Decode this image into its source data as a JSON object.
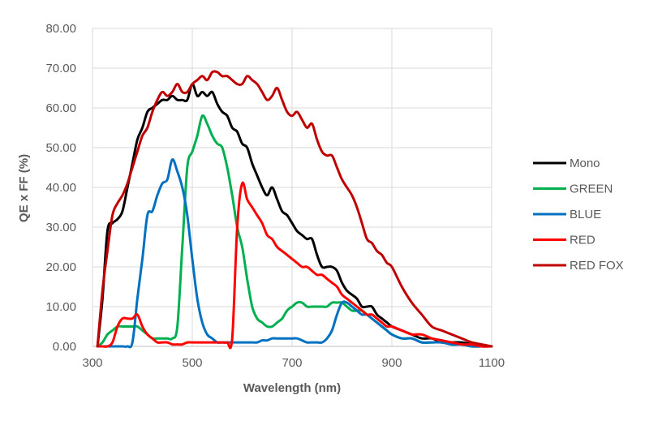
{
  "chart_data": {
    "type": "line",
    "xlabel": "Wavelength (nm)",
    "ylabel": "QE x FF (%)",
    "xlim": [
      300,
      1100
    ],
    "ylim": [
      0,
      80
    ],
    "xticks": [
      300,
      500,
      700,
      900,
      1100
    ],
    "xtick_labels": [
      "300",
      "500",
      "700",
      "900",
      "1100"
    ],
    "yticks": [
      0,
      10,
      20,
      30,
      40,
      50,
      60,
      70,
      80
    ],
    "ytick_labels": [
      "0.00",
      "10.00",
      "20.00",
      "30.00",
      "40.00",
      "50.00",
      "60.00",
      "70.00",
      "80.00"
    ],
    "grid": "vertical and horizontal major gridlines",
    "legend_position": "right",
    "series": [
      {
        "name": "Mono",
        "color": "#000000",
        "x": [
          310,
          320,
          330,
          340,
          350,
          360,
          370,
          380,
          390,
          400,
          410,
          420,
          430,
          440,
          450,
          460,
          470,
          480,
          490,
          500,
          510,
          520,
          530,
          540,
          550,
          560,
          570,
          580,
          590,
          600,
          610,
          620,
          630,
          640,
          650,
          660,
          670,
          680,
          690,
          700,
          710,
          720,
          730,
          740,
          750,
          760,
          770,
          780,
          790,
          800,
          810,
          820,
          830,
          840,
          850,
          860,
          870,
          880,
          890,
          900,
          920,
          940,
          960,
          980,
          1000,
          1020,
          1040,
          1060,
          1080,
          1100
        ],
        "y": [
          0,
          12,
          29,
          31,
          32,
          34,
          40,
          46,
          52,
          55,
          59,
          60,
          61,
          62,
          62,
          63,
          62,
          62,
          62,
          66,
          63,
          64,
          63,
          64,
          61,
          59,
          58,
          55,
          54,
          51,
          50,
          46,
          43,
          40,
          38,
          40,
          37,
          34,
          33,
          31,
          29,
          28,
          27,
          27,
          23,
          20,
          20,
          20,
          19,
          16,
          14,
          13,
          12,
          10,
          10,
          10,
          8,
          7,
          6,
          5,
          4,
          3,
          2,
          2,
          1,
          1,
          1,
          0.5,
          0,
          0
        ]
      },
      {
        "name": "GREEN",
        "color": "#00b050",
        "x": [
          310,
          320,
          330,
          340,
          350,
          360,
          370,
          380,
          390,
          400,
          410,
          420,
          430,
          440,
          450,
          460,
          470,
          480,
          490,
          500,
          510,
          520,
          530,
          540,
          550,
          560,
          570,
          580,
          590,
          600,
          610,
          620,
          630,
          640,
          650,
          660,
          670,
          680,
          690,
          700,
          710,
          720,
          730,
          740,
          750,
          760,
          770,
          780,
          790,
          800,
          810,
          820,
          830,
          840,
          850,
          860,
          870,
          880,
          890,
          900,
          920,
          940,
          960,
          980,
          1000,
          1020,
          1040,
          1060,
          1080,
          1100
        ],
        "y": [
          0,
          1,
          3,
          4,
          5,
          5,
          5,
          5,
          5,
          4,
          3,
          2,
          2,
          2,
          2,
          2,
          5,
          25,
          45,
          49,
          53,
          58,
          56,
          53,
          51,
          50,
          45,
          38,
          30,
          25,
          17,
          10,
          7,
          6,
          5,
          5,
          6,
          7,
          9,
          10,
          11,
          11,
          10,
          10,
          10,
          10,
          10,
          11,
          11,
          11,
          10,
          9,
          9,
          9,
          8,
          7,
          6,
          5,
          4,
          3,
          2,
          2,
          1,
          1,
          1,
          0.5,
          0.5,
          0,
          0,
          0
        ]
      },
      {
        "name": "BLUE",
        "color": "#0070c0",
        "x": [
          310,
          320,
          330,
          340,
          350,
          360,
          370,
          380,
          390,
          400,
          410,
          420,
          430,
          440,
          450,
          460,
          470,
          480,
          490,
          500,
          510,
          520,
          530,
          540,
          550,
          560,
          570,
          580,
          590,
          600,
          610,
          620,
          630,
          640,
          650,
          660,
          670,
          680,
          690,
          700,
          710,
          720,
          730,
          740,
          750,
          760,
          770,
          780,
          790,
          800,
          810,
          820,
          830,
          840,
          850,
          860,
          870,
          880,
          890,
          900,
          920,
          940,
          960,
          980,
          1000,
          1020,
          1040,
          1060,
          1080,
          1100
        ],
        "y": [
          0,
          0,
          0,
          0,
          0,
          0,
          0,
          1,
          12,
          22,
          33,
          34,
          38,
          41,
          42,
          47,
          44,
          40,
          33,
          22,
          12,
          6,
          3,
          2,
          1,
          1,
          1,
          1,
          1,
          1,
          1,
          1,
          1,
          1.5,
          1.5,
          2,
          2,
          2,
          2,
          2,
          2,
          1.5,
          1,
          1,
          1,
          1,
          2,
          4,
          8,
          11,
          11,
          10,
          9,
          8,
          8,
          7,
          6,
          5,
          4,
          3,
          2,
          2,
          1,
          1,
          1,
          0.5,
          0.5,
          0,
          0,
          0
        ]
      },
      {
        "name": "RED",
        "color": "#ff0000",
        "x": [
          310,
          320,
          330,
          340,
          350,
          360,
          370,
          380,
          390,
          400,
          410,
          420,
          430,
          440,
          450,
          460,
          470,
          480,
          490,
          500,
          510,
          520,
          530,
          540,
          550,
          560,
          570,
          580,
          590,
          600,
          610,
          620,
          630,
          640,
          650,
          660,
          670,
          680,
          690,
          700,
          710,
          720,
          730,
          740,
          750,
          760,
          770,
          780,
          790,
          800,
          810,
          820,
          830,
          840,
          850,
          860,
          870,
          880,
          890,
          900,
          920,
          940,
          960,
          980,
          1000,
          1020,
          1040,
          1060,
          1080,
          1100
        ],
        "y": [
          0,
          0,
          0,
          1,
          5,
          7,
          7,
          7,
          8,
          5,
          3,
          2,
          1,
          1,
          1,
          0.5,
          0.5,
          0.5,
          1,
          1,
          1,
          1,
          1,
          1,
          1,
          1,
          1,
          2,
          30,
          41,
          37,
          35,
          33,
          31,
          28,
          27,
          25,
          24,
          23,
          22,
          21,
          20,
          20,
          19,
          18,
          18,
          17,
          16,
          15,
          13,
          12,
          11,
          10,
          9,
          8,
          8,
          7,
          6,
          5,
          5,
          4,
          3,
          3,
          2,
          1.5,
          1,
          0.5,
          0.5,
          0,
          0
        ]
      },
      {
        "name": "RED FOX",
        "color": "#c00000",
        "x": [
          310,
          320,
          330,
          340,
          350,
          360,
          370,
          380,
          390,
          400,
          410,
          420,
          430,
          440,
          450,
          460,
          470,
          480,
          490,
          500,
          510,
          520,
          530,
          540,
          550,
          560,
          570,
          580,
          590,
          600,
          610,
          620,
          630,
          640,
          650,
          660,
          670,
          680,
          690,
          700,
          710,
          720,
          730,
          740,
          750,
          760,
          770,
          780,
          790,
          800,
          810,
          820,
          830,
          840,
          850,
          860,
          870,
          880,
          890,
          900,
          920,
          940,
          960,
          980,
          1000,
          1020,
          1040,
          1060,
          1080,
          1100
        ],
        "y": [
          0,
          14,
          24,
          33,
          36,
          38,
          41,
          45,
          49,
          53,
          55,
          59,
          62,
          64,
          63,
          64,
          66,
          64,
          64,
          66,
          67,
          68,
          67,
          69,
          69,
          68,
          68,
          67,
          66,
          66,
          68,
          67,
          66,
          64,
          62,
          63,
          65,
          62,
          59,
          58,
          59,
          57,
          55,
          56,
          52,
          49,
          48,
          48,
          45,
          42,
          40,
          38,
          35,
          31,
          27,
          26,
          24,
          23,
          21,
          20,
          15,
          11,
          8,
          5,
          4,
          3,
          2,
          1,
          0.5,
          0
        ]
      }
    ]
  }
}
